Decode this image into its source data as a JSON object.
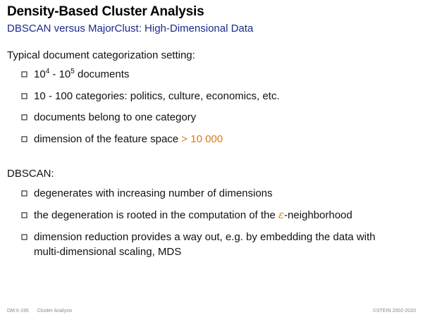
{
  "header": {
    "title": "Density-Based Cluster Analysis",
    "subtitle": "DBSCAN versus MajorClust: High-Dimensional Data"
  },
  "section1": {
    "heading": "Typical document categorization setting:",
    "items": [
      {
        "base1": "10",
        "exp1": "4",
        "mid": " - 10",
        "exp2": "5",
        "rest": " documents"
      },
      {
        "text": "10 - 100 categories: politics, culture, economics, etc."
      },
      {
        "text": "documents belong to one category"
      },
      {
        "text": "dimension of the feature space ",
        "highlight": "> 10 000"
      }
    ]
  },
  "section2": {
    "heading": "DBSCAN:",
    "items": [
      {
        "text": "degenerates with increasing number of dimensions"
      },
      {
        "pre": "the degeneration is rooted in the computation of the ",
        "symbol": "ε",
        "post": "-neighborhood"
      },
      {
        "line1": "dimension reduction provides a way out, e.g. by embedding the data with",
        "line2": "multi-dimensional scaling, MDS"
      }
    ]
  },
  "footer": {
    "left_code": "DM:II-195",
    "left_topic": "Cluster Analysis",
    "right": "©STEIN 2002-2020"
  },
  "colors": {
    "subtitle": "#1a2a8c",
    "highlight": "#e07a10",
    "bullet": "#333333"
  }
}
